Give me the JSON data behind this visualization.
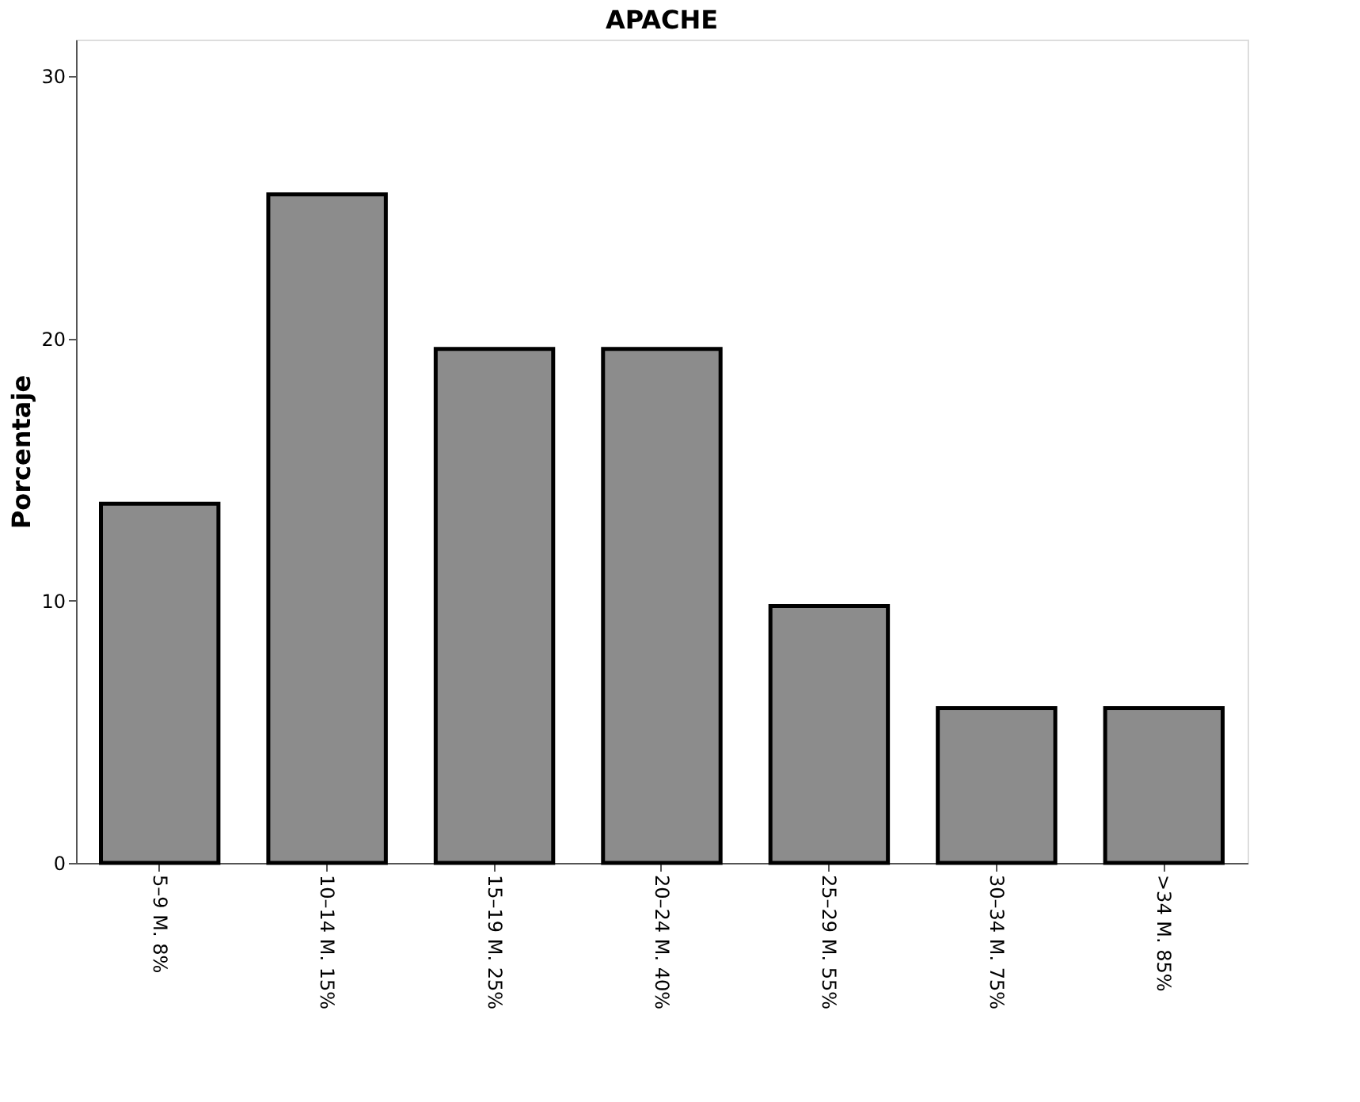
{
  "chart_data": {
    "type": "bar",
    "title": "APACHE",
    "ylabel": "Porcentaje",
    "categories": [
      "5–9 M. 8%",
      "10–14 M. 15%",
      "15–19 M. 25%",
      "20–24 M. 40%",
      "25–29 M. 55%",
      "30–34 M. 75%",
      ">34 M. 85%"
    ],
    "values": [
      13.7,
      25.5,
      19.6,
      19.6,
      9.8,
      5.9,
      5.9
    ],
    "color": "#8c8c8c",
    "ylim": [
      0,
      31.4
    ],
    "yticks": [
      0,
      10,
      20,
      30
    ],
    "grid": false
  }
}
